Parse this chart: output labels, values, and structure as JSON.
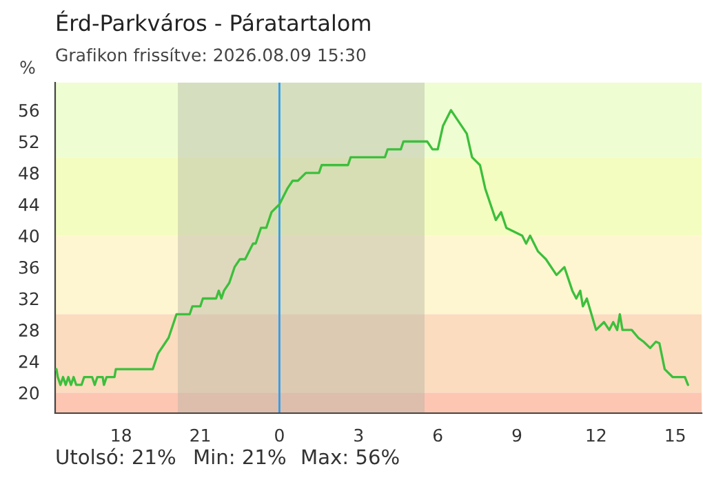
{
  "chart_data": {
    "type": "line",
    "title": "Érd-Parkváros - Páratartalom",
    "subtitle": "Grafikon frissítve: 2026.08.09 15:30",
    "ylabel": "%",
    "x": [
      "2026-08-08T15:33",
      "2026-08-08T15:36",
      "2026-08-08T15:42",
      "2026-08-08T15:48",
      "2026-08-08T15:54",
      "2026-08-08T16:00",
      "2026-08-08T16:06",
      "2026-08-08T16:12",
      "2026-08-08T16:18",
      "2026-08-08T16:30",
      "2026-08-08T16:36",
      "2026-08-08T16:54",
      "2026-08-08T17:00",
      "2026-08-08T17:06",
      "2026-08-08T17:18",
      "2026-08-08T17:21",
      "2026-08-08T17:27",
      "2026-08-08T17:45",
      "2026-08-08T17:48",
      "2026-08-08T19:12",
      "2026-08-08T19:24",
      "2026-08-08T19:36",
      "2026-08-08T19:48",
      "2026-08-08T20:00",
      "2026-08-08T20:06",
      "2026-08-08T20:36",
      "2026-08-08T20:42",
      "2026-08-08T21:00",
      "2026-08-08T21:06",
      "2026-08-08T21:36",
      "2026-08-08T21:42",
      "2026-08-08T21:48",
      "2026-08-08T21:54",
      "2026-08-08T22:06",
      "2026-08-08T22:18",
      "2026-08-08T22:30",
      "2026-08-08T22:42",
      "2026-08-08T23:00",
      "2026-08-08T23:06",
      "2026-08-08T23:18",
      "2026-08-08T23:30",
      "2026-08-08T23:42",
      "2026-08-09T00:00",
      "2026-08-09T00:18",
      "2026-08-09T00:30",
      "2026-08-09T00:42",
      "2026-08-09T01:00",
      "2026-08-09T01:12",
      "2026-08-09T01:30",
      "2026-08-09T01:36",
      "2026-08-09T02:36",
      "2026-08-09T02:42",
      "2026-08-09T04:00",
      "2026-08-09T04:06",
      "2026-08-09T04:36",
      "2026-08-09T04:42",
      "2026-08-09T05:36",
      "2026-08-09T05:48",
      "2026-08-09T06:00",
      "2026-08-09T06:12",
      "2026-08-09T06:30",
      "2026-08-09T06:42",
      "2026-08-09T07:06",
      "2026-08-09T07:18",
      "2026-08-09T07:36",
      "2026-08-09T07:48",
      "2026-08-09T08:00",
      "2026-08-09T08:12",
      "2026-08-09T08:24",
      "2026-08-09T08:36",
      "2026-08-09T09:12",
      "2026-08-09T09:21",
      "2026-08-09T09:30",
      "2026-08-09T09:48",
      "2026-08-09T10:06",
      "2026-08-09T10:30",
      "2026-08-09T10:48",
      "2026-08-09T11:06",
      "2026-08-09T11:15",
      "2026-08-09T11:24",
      "2026-08-09T11:30",
      "2026-08-09T11:39",
      "2026-08-09T12:00",
      "2026-08-09T12:18",
      "2026-08-09T12:30",
      "2026-08-09T12:39",
      "2026-08-09T12:48",
      "2026-08-09T12:54",
      "2026-08-09T13:00",
      "2026-08-09T13:21",
      "2026-08-09T13:36",
      "2026-08-09T13:48",
      "2026-08-09T14:03",
      "2026-08-09T14:16",
      "2026-08-09T14:24",
      "2026-08-09T14:36",
      "2026-08-09T14:54",
      "2026-08-09T15:22",
      "2026-08-09T15:29"
    ],
    "values": [
      23,
      22,
      21,
      22,
      21,
      22,
      21,
      22,
      21,
      21,
      22,
      22,
      21,
      22,
      22,
      21,
      22,
      22,
      23,
      23,
      25,
      26,
      27,
      29,
      30,
      30,
      31,
      31,
      32,
      32,
      33,
      32,
      33,
      34,
      36,
      37,
      37,
      39,
      39,
      41,
      41,
      43,
      44,
      46,
      47,
      47,
      48,
      48,
      48,
      49,
      49,
      50,
      50,
      51,
      51,
      52,
      52,
      51,
      51,
      54,
      56,
      55,
      53,
      50,
      49,
      46,
      44,
      42,
      43,
      41,
      40,
      39,
      40,
      38,
      37,
      35,
      36,
      33,
      32,
      33,
      31,
      32,
      28,
      29,
      28,
      29,
      28,
      30,
      28,
      28,
      27,
      26.5,
      25.7,
      26.5,
      26.3,
      23,
      22,
      22,
      21
    ],
    "color": "#3cbf3c",
    "xlim": [
      "2026-08-08T15:30",
      "2026-08-09T16:00"
    ],
    "xticks": [
      {
        "value": "2026-08-08T18:00",
        "label": "18"
      },
      {
        "value": "2026-08-08T21:00",
        "label": "21"
      },
      {
        "value": "2026-08-09T00:00",
        "label": "0"
      },
      {
        "value": "2026-08-09T03:00",
        "label": "3"
      },
      {
        "value": "2026-08-09T06:00",
        "label": "6"
      },
      {
        "value": "2026-08-09T09:00",
        "label": "9"
      },
      {
        "value": "2026-08-09T12:00",
        "label": "12"
      },
      {
        "value": "2026-08-09T15:00",
        "label": "15"
      }
    ],
    "ylim": [
      17.4,
      59.5
    ],
    "yticks": [
      20,
      24,
      28,
      32,
      36,
      40,
      44,
      48,
      52,
      56
    ],
    "grid": false,
    "legend": false,
    "bands": [
      {
        "axis": "y",
        "from": 17.4,
        "to": 20,
        "color": "#fcc6b2"
      },
      {
        "axis": "y",
        "from": 20,
        "to": 30,
        "color": "#fbdcbf"
      },
      {
        "axis": "y",
        "from": 30,
        "to": 40,
        "color": "#fef6d0"
      },
      {
        "axis": "y",
        "from": 40,
        "to": 50,
        "color": "#f4fdc0"
      },
      {
        "axis": "y",
        "from": 50,
        "to": 59.5,
        "color": "#effdd2"
      },
      {
        "axis": "x",
        "from": "2026-08-08T20:09",
        "to": "2026-08-09T05:30",
        "color": "#b0b0a0"
      }
    ],
    "ref_lines": [
      {
        "axis": "x",
        "value": "2026-08-09T00:00",
        "color": "#2a9df4"
      }
    ],
    "annotations": [
      "Utolsó: 21%",
      "Min: 21%",
      "Max: 56%"
    ]
  }
}
